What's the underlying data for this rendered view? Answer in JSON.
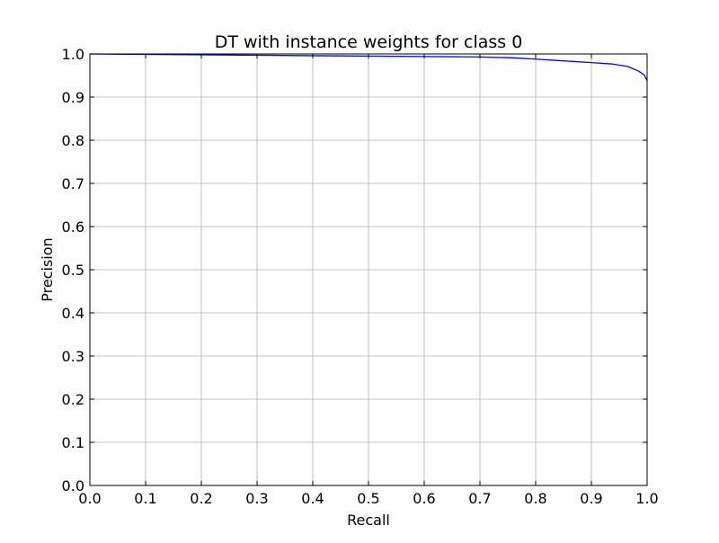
{
  "chart_data": {
    "type": "line",
    "title": "DT with instance weights for class 0",
    "xlabel": "Recall",
    "ylabel": "Precision",
    "xlim": [
      0.0,
      1.0
    ],
    "ylim": [
      0.0,
      1.0
    ],
    "xticks": [
      "0.0",
      "0.1",
      "0.2",
      "0.3",
      "0.4",
      "0.5",
      "0.6",
      "0.7",
      "0.8",
      "0.9",
      "1.0"
    ],
    "yticks": [
      "0.0",
      "0.1",
      "0.2",
      "0.3",
      "0.4",
      "0.5",
      "0.6",
      "0.7",
      "0.8",
      "0.9",
      "1.0"
    ],
    "grid": true,
    "legend": "none",
    "series": [
      {
        "color": "#0000ff",
        "x": [
          0.0,
          0.1,
          0.2,
          0.3,
          0.4,
          0.5,
          0.6,
          0.7,
          0.76,
          0.8,
          0.85,
          0.9,
          0.935,
          0.965,
          0.985,
          0.995,
          1.0
        ],
        "y": [
          1.0,
          0.999,
          0.998,
          0.997,
          0.996,
          0.995,
          0.994,
          0.993,
          0.991,
          0.988,
          0.984,
          0.98,
          0.977,
          0.971,
          0.96,
          0.951,
          0.938
        ]
      }
    ]
  }
}
